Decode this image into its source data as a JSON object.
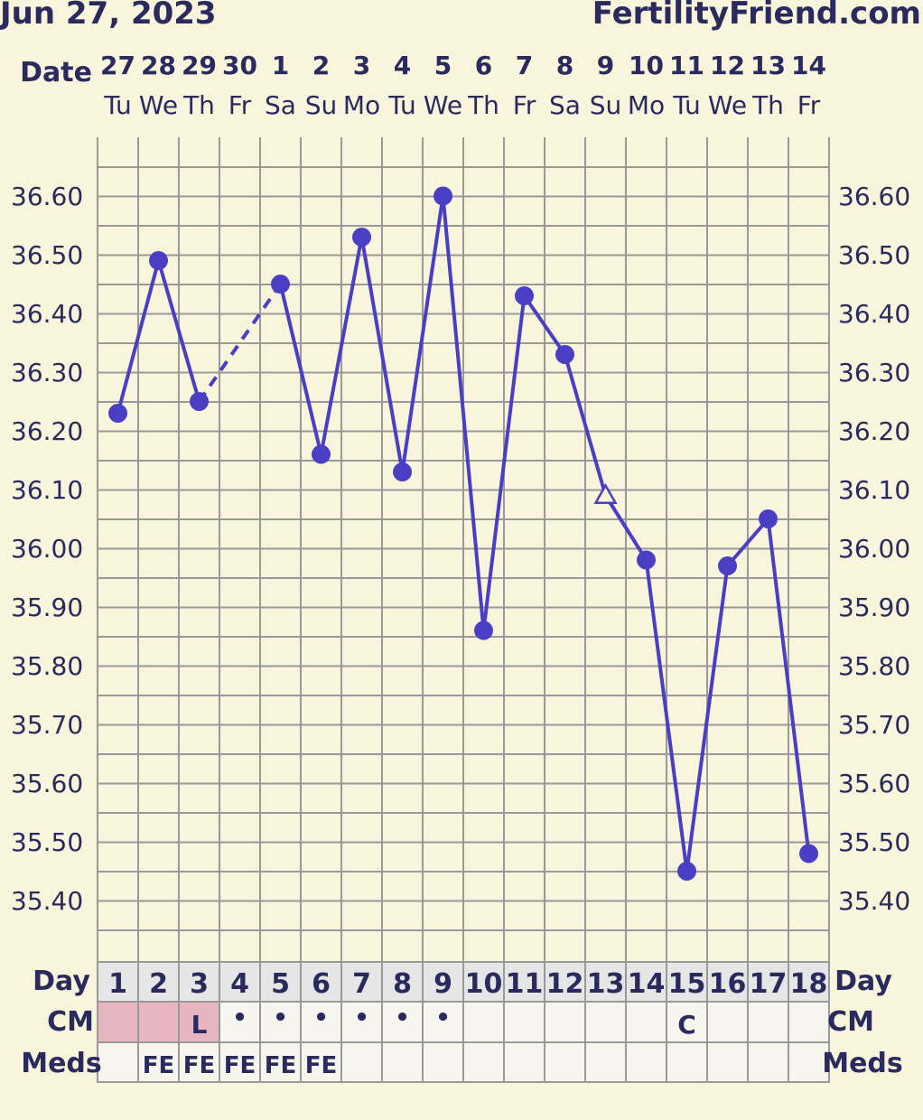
{
  "header": {
    "date": "Jun 27, 2023",
    "site": "FertilityFriend.com"
  },
  "labels": {
    "date": "Date",
    "day": "Day",
    "cm": "CM",
    "meds": "Meds"
  },
  "colors": {
    "background": "#f8f5dc",
    "line": "#4a3fc4",
    "grid": "#999999",
    "period": "#e8b4c0",
    "cell": "#f6f6ee",
    "day_header": "#e6e6e6",
    "text": "#2a2a5e"
  },
  "chart_data": {
    "type": "line",
    "y_unit": "temperature (°C)",
    "ylim": [
      35.3,
      36.7
    ],
    "y_ticks": [
      "36.60",
      "36.50",
      "36.40",
      "36.30",
      "36.20",
      "36.10",
      "36.00",
      "35.90",
      "35.80",
      "35.70",
      "35.60",
      "35.50",
      "35.40"
    ],
    "y_tick_values": [
      36.6,
      36.5,
      36.4,
      36.3,
      36.2,
      36.1,
      36.0,
      35.9,
      35.8,
      35.7,
      35.6,
      35.5,
      35.4
    ],
    "grid": true,
    "dates": [
      "27",
      "28",
      "29",
      "30",
      "1",
      "2",
      "3",
      "4",
      "5",
      "6",
      "7",
      "8",
      "9",
      "10",
      "11",
      "12",
      "13",
      "14"
    ],
    "weekdays": [
      "Tu",
      "We",
      "Th",
      "Fr",
      "Sa",
      "Su",
      "Mo",
      "Tu",
      "We",
      "Th",
      "Fr",
      "Sa",
      "Su",
      "Mo",
      "Tu",
      "We",
      "Th",
      "Fr"
    ],
    "cycle_days": [
      "1",
      "2",
      "3",
      "4",
      "5",
      "6",
      "7",
      "8",
      "9",
      "10",
      "11",
      "12",
      "13",
      "14",
      "15",
      "16",
      "17",
      "18"
    ],
    "temperatures": [
      36.23,
      36.49,
      36.25,
      null,
      36.45,
      36.16,
      36.53,
      36.13,
      36.6,
      35.86,
      36.43,
      36.33,
      36.09,
      35.98,
      35.45,
      35.97,
      36.05,
      35.48
    ],
    "marker_types": [
      "dot",
      "dot",
      "dot",
      null,
      "dot",
      "dot",
      "dot",
      "dot",
      "dot",
      "dot",
      "dot",
      "dot",
      "triangle",
      "dot",
      "dot",
      "dot",
      "dot",
      "dot"
    ],
    "dashed_segments": [
      [
        2,
        4
      ]
    ],
    "period_days": [
      1,
      2,
      3
    ],
    "cm": [
      "",
      "",
      "L",
      "•",
      "•",
      "•",
      "•",
      "•",
      "•",
      "",
      "",
      "",
      "",
      "",
      "C",
      "",
      "",
      ""
    ],
    "meds": [
      "",
      "FE",
      "FE",
      "FE",
      "FE",
      "FE",
      "",
      "",
      "",
      "",
      "",
      "",
      "",
      "",
      "",
      "",
      "",
      ""
    ]
  }
}
